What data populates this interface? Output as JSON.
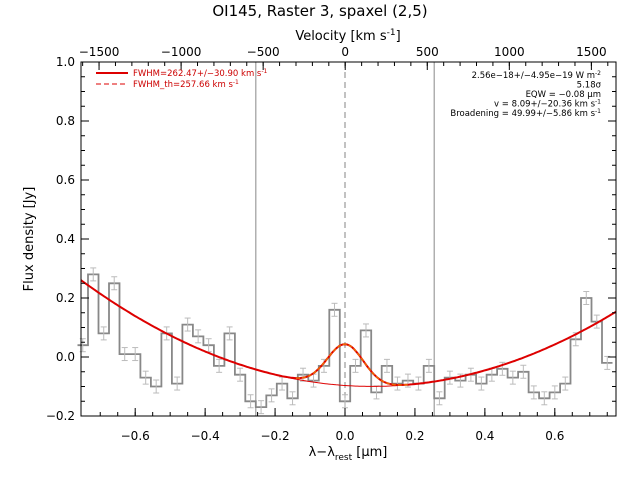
{
  "chart_data": {
    "type": "line",
    "title": "OI145, Raster 3, spaxel (2,5)",
    "xlabel": "λ−λ",
    "xlabel_sub": "rest",
    "xlabel_unit": " [μm]",
    "ylabel": "Flux density [Jy]",
    "top_xlabel": "Velocity [km s",
    "top_xlabel_sup": "-1",
    "top_xlabel_end": "]",
    "xlim": [
      -0.755,
      0.775
    ],
    "ylim": [
      -0.2,
      1.0
    ],
    "top_xlim": [
      -1610,
      1650
    ],
    "x_ticks": [
      -0.6,
      -0.4,
      -0.2,
      0.0,
      0.2,
      0.4,
      0.6
    ],
    "x_tick_labels": [
      "−0.6",
      "−0.4",
      "−0.2",
      "0.0",
      "0.2",
      "0.4",
      "0.6"
    ],
    "y_ticks": [
      -0.2,
      0.0,
      0.2,
      0.4,
      0.6,
      0.8,
      1.0
    ],
    "y_tick_labels": [
      "−0.2",
      "0.0",
      "0.2",
      "0.4",
      "0.6",
      "0.8",
      "1.0"
    ],
    "top_ticks": [
      -1500,
      -1000,
      -500,
      0,
      500,
      1000,
      1500
    ],
    "top_tick_labels": [
      "−1500",
      "−1000",
      "−500",
      "0",
      "500",
      "1000",
      "1500"
    ],
    "vlines": [
      -0.255,
      0.0,
      0.255
    ],
    "vline_dashed": [
      0.0
    ],
    "legend": [
      {
        "label": "FWHM=262.47+/−30.90 km s",
        "sup": "-1",
        "style": "solid",
        "color": "#dd0000"
      },
      {
        "label": "FWHM_th=257.66 km s",
        "sup": "-1",
        "style": "dashed",
        "color": "#dd0000"
      }
    ],
    "annotations": [
      {
        "text": "2.56e−18+/−4.95e−19 W m",
        "sup": "-2"
      },
      {
        "text": "5.18σ",
        "sup": ""
      },
      {
        "text": "EQW = −0.08 μm",
        "sup": ""
      },
      {
        "text": "v = 8.09+/−20.36 km s",
        "sup": "-1"
      },
      {
        "text": "Broadening = 49.99+/−5.86 km s",
        "sup": "-1"
      }
    ],
    "spectrum": {
      "name": "Flux (step)",
      "x": [
        -0.75,
        -0.72,
        -0.69,
        -0.66,
        -0.63,
        -0.6,
        -0.57,
        -0.54,
        -0.51,
        -0.48,
        -0.45,
        -0.42,
        -0.39,
        -0.36,
        -0.33,
        -0.3,
        -0.27,
        -0.24,
        -0.21,
        -0.18,
        -0.15,
        -0.12,
        -0.09,
        -0.06,
        -0.03,
        0.0,
        0.03,
        0.06,
        0.09,
        0.12,
        0.15,
        0.18,
        0.21,
        0.24,
        0.27,
        0.3,
        0.33,
        0.36,
        0.39,
        0.42,
        0.45,
        0.48,
        0.51,
        0.54,
        0.57,
        0.6,
        0.63,
        0.66,
        0.69,
        0.72,
        0.75
      ],
      "y": [
        0.04,
        0.28,
        0.08,
        0.25,
        0.01,
        0.01,
        -0.07,
        -0.1,
        0.08,
        -0.09,
        0.11,
        0.07,
        0.04,
        -0.03,
        0.08,
        -0.06,
        -0.15,
        -0.17,
        -0.13,
        -0.09,
        -0.14,
        -0.06,
        -0.08,
        -0.03,
        0.16,
        -0.15,
        -0.03,
        0.09,
        -0.12,
        -0.03,
        -0.09,
        -0.08,
        -0.09,
        -0.03,
        -0.14,
        -0.07,
        -0.08,
        -0.06,
        -0.09,
        -0.06,
        -0.04,
        -0.07,
        -0.05,
        -0.12,
        -0.14,
        -0.12,
        -0.09,
        0.06,
        0.2,
        0.12,
        -0.02
      ],
      "err": 0.022,
      "color": "#888888"
    },
    "fit": {
      "name": "FWHM=262.47+/-30.90 km s-1",
      "continuum": {
        "c0": -0.0982,
        "c1": 0.055,
        "c2": 0.52,
        "x0": 0.13
      },
      "gaussian": {
        "amp": 0.14,
        "mu": 0.001,
        "sigma": 0.052
      },
      "color": "#dd0000"
    }
  }
}
